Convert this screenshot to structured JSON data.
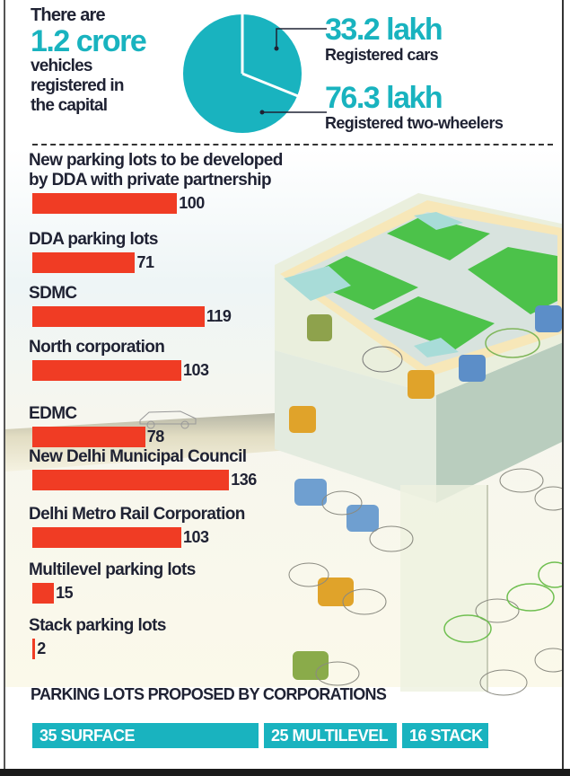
{
  "header": {
    "intro_line1": "There are",
    "intro_big": "1.2 crore",
    "intro_line2": "vehicles",
    "intro_line3": "registered in",
    "intro_line4": "the capital"
  },
  "stats": [
    {
      "value": "33.2 lakh",
      "label": "Registered cars"
    },
    {
      "value": "76.3 lakh",
      "label": "Registered two-wheelers"
    }
  ],
  "colors": {
    "teal": "#19b3bf",
    "bar_red": "#f03c24",
    "text_dark": "#1f2233"
  },
  "footer": {
    "title": "PARKING LOTS PROPOSED BY CORPORATIONS",
    "pills": [
      {
        "label": "35 SURFACE"
      },
      {
        "label": "25 MULTILEVEL"
      },
      {
        "label": "16 STACK"
      }
    ]
  },
  "chart_data": [
    {
      "type": "pie",
      "title": "There are 1.2 crore vehicles registered in the capital",
      "categories": [
        "Registered cars",
        "Registered two-wheelers"
      ],
      "values": [
        33.2,
        76.3
      ],
      "unit": "lakh",
      "value_labels": [
        "33.2 lakh",
        "76.3 lakh"
      ]
    },
    {
      "type": "bar",
      "orientation": "horizontal",
      "title": "",
      "categories": [
        "New parking lots to be developed by DDA with private partnership",
        "DDA parking lots",
        "SDMC",
        "North corporation",
        "EDMC",
        "New Delhi Municipal Council",
        "Delhi Metro Rail Corporation",
        "Multilevel parking lots",
        "Stack parking lots"
      ],
      "label_lines": [
        [
          "New parking lots to be developed",
          "by DDA with private partnership"
        ],
        [
          "DDA parking lots"
        ],
        [
          "SDMC"
        ],
        [
          "North corporation"
        ],
        [
          "EDMC"
        ],
        [
          "New Delhi Municipal Council"
        ],
        [
          "Delhi Metro Rail Corporation"
        ],
        [
          "Multilevel parking lots"
        ],
        [
          "Stack parking lots"
        ]
      ],
      "values": [
        100,
        71,
        119,
        103,
        78,
        136,
        103,
        15,
        2
      ],
      "xlabel": "",
      "ylabel": "",
      "grid": false,
      "data_labels": true
    },
    {
      "type": "table",
      "title": "PARKING LOTS PROPOSED BY CORPORATIONS",
      "categories": [
        "SURFACE",
        "MULTILEVEL",
        "STACK"
      ],
      "values": [
        35,
        25,
        16
      ]
    }
  ]
}
